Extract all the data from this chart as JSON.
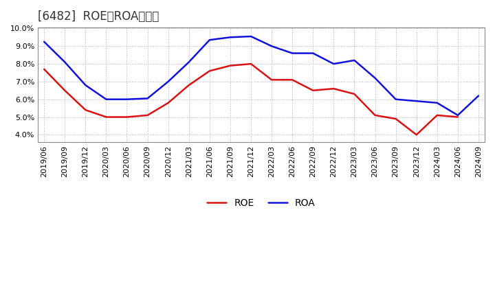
{
  "title": "[6482]  ROE、ROAの推移",
  "x_labels": [
    "2019/06",
    "2019/09",
    "2019/12",
    "2020/03",
    "2020/06",
    "2020/09",
    "2020/12",
    "2021/03",
    "2021/06",
    "2021/09",
    "2021/12",
    "2022/03",
    "2022/06",
    "2022/09",
    "2022/12",
    "2023/03",
    "2023/06",
    "2023/09",
    "2023/12",
    "2024/03",
    "2024/06",
    "2024/09"
  ],
  "ROE": [
    7.7,
    6.5,
    5.4,
    5.0,
    5.0,
    5.1,
    5.8,
    6.8,
    7.6,
    7.9,
    8.0,
    7.1,
    7.1,
    6.5,
    6.6,
    6.3,
    5.1,
    4.9,
    4.0,
    5.1,
    5.0,
    null
  ],
  "ROA": [
    9.25,
    8.1,
    6.8,
    6.0,
    6.0,
    6.05,
    7.0,
    8.1,
    9.35,
    9.5,
    9.55,
    9.0,
    8.6,
    8.6,
    8.0,
    8.2,
    7.2,
    6.0,
    5.9,
    5.8,
    5.1,
    6.2
  ],
  "ROE_color": "#dd1111",
  "ROA_color": "#1111dd",
  "bg_color": "#ffffff",
  "plot_bg_color": "#ffffff",
  "grid_color": "#aaaacc",
  "ylim_min": 3.6,
  "ylim_max": 10.05,
  "yticks": [
    4.0,
    5.0,
    6.0,
    7.0,
    8.0,
    9.0,
    10.0
  ],
  "legend_ROE": "ROE",
  "legend_ROA": "ROA",
  "title_fontsize": 12,
  "tick_fontsize": 8,
  "legend_fontsize": 10,
  "linewidth": 1.8
}
